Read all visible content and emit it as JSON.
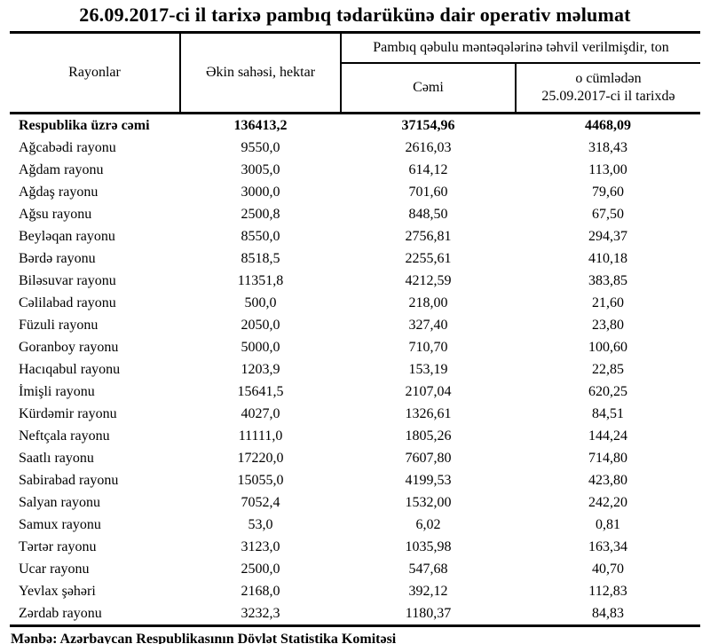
{
  "page": {
    "title": "26.09.2017-ci il tarixə pambıq tədarükünə dair operativ məlumat",
    "source_note": "Mənbə: Azərbaycan Respublikasının Dövlət Statistika Komitəsi"
  },
  "table": {
    "columns": {
      "regions": "Rayonlar",
      "area": "Əkin sahəsi, hektar",
      "delivered_group": "Pambıq qəbulu məntəqələrinə təhvil verilmişdir, ton",
      "delivered_total": "Cəmi",
      "delivered_daily_line1": "o cümlədən",
      "delivered_daily_line2": "25.09.2017-ci il tarixdə"
    },
    "total_row": {
      "region": "Respublika üzrə cəmi",
      "area": "136413,2",
      "total": "37154,96",
      "daily": "4468,09"
    },
    "rows": [
      {
        "region": "Ağcabədi rayonu",
        "area": "9550,0",
        "total": "2616,03",
        "daily": "318,43"
      },
      {
        "region": "Ağdam rayonu",
        "area": "3005,0",
        "total": "614,12",
        "daily": "113,00"
      },
      {
        "region": "Ağdaş rayonu",
        "area": "3000,0",
        "total": "701,60",
        "daily": "79,60"
      },
      {
        "region": "Ağsu rayonu",
        "area": "2500,8",
        "total": "848,50",
        "daily": "67,50"
      },
      {
        "region": "Beyləqan rayonu",
        "area": "8550,0",
        "total": "2756,81",
        "daily": "294,37"
      },
      {
        "region": "Bərdə rayonu",
        "area": "8518,5",
        "total": "2255,61",
        "daily": "410,18"
      },
      {
        "region": "Biləsuvar rayonu",
        "area": "11351,8",
        "total": "4212,59",
        "daily": "383,85"
      },
      {
        "region": "Cəlilabad rayonu",
        "area": "500,0",
        "total": "218,00",
        "daily": "21,60"
      },
      {
        "region": "Füzuli rayonu",
        "area": "2050,0",
        "total": "327,40",
        "daily": "23,80"
      },
      {
        "region": "Goranboy rayonu",
        "area": "5000,0",
        "total": "710,70",
        "daily": "100,60"
      },
      {
        "region": "Hacıqabul rayonu",
        "area": "1203,9",
        "total": "153,19",
        "daily": "22,85"
      },
      {
        "region": "İmişli rayonu",
        "area": "15641,5",
        "total": "2107,04",
        "daily": "620,25"
      },
      {
        "region": "Kürdəmir rayonu",
        "area": "4027,0",
        "total": "1326,61",
        "daily": "84,51"
      },
      {
        "region": "Neftçala rayonu",
        "area": "11111,0",
        "total": "1805,26",
        "daily": "144,24"
      },
      {
        "region": "Saatlı rayonu",
        "area": "17220,0",
        "total": "7607,80",
        "daily": "714,80"
      },
      {
        "region": "Sabirabad rayonu",
        "area": "15055,0",
        "total": "4199,53",
        "daily": "423,80"
      },
      {
        "region": "Salyan rayonu",
        "area": "7052,4",
        "total": "1532,00",
        "daily": "242,20"
      },
      {
        "region": "Samux rayonu",
        "area": "53,0",
        "total": "6,02",
        "daily": "0,81"
      },
      {
        "region": "Tərtər rayonu",
        "area": "3123,0",
        "total": "1035,98",
        "daily": "163,34"
      },
      {
        "region": "Ucar rayonu",
        "area": "2500,0",
        "total": "547,68",
        "daily": "40,70"
      },
      {
        "region": "Yevlax şəhəri",
        "area": "2168,0",
        "total": "392,12",
        "daily": "112,83"
      },
      {
        "region": "Zərdab rayonu",
        "area": "3232,3",
        "total": "1180,37",
        "daily": "84,83"
      }
    ]
  }
}
